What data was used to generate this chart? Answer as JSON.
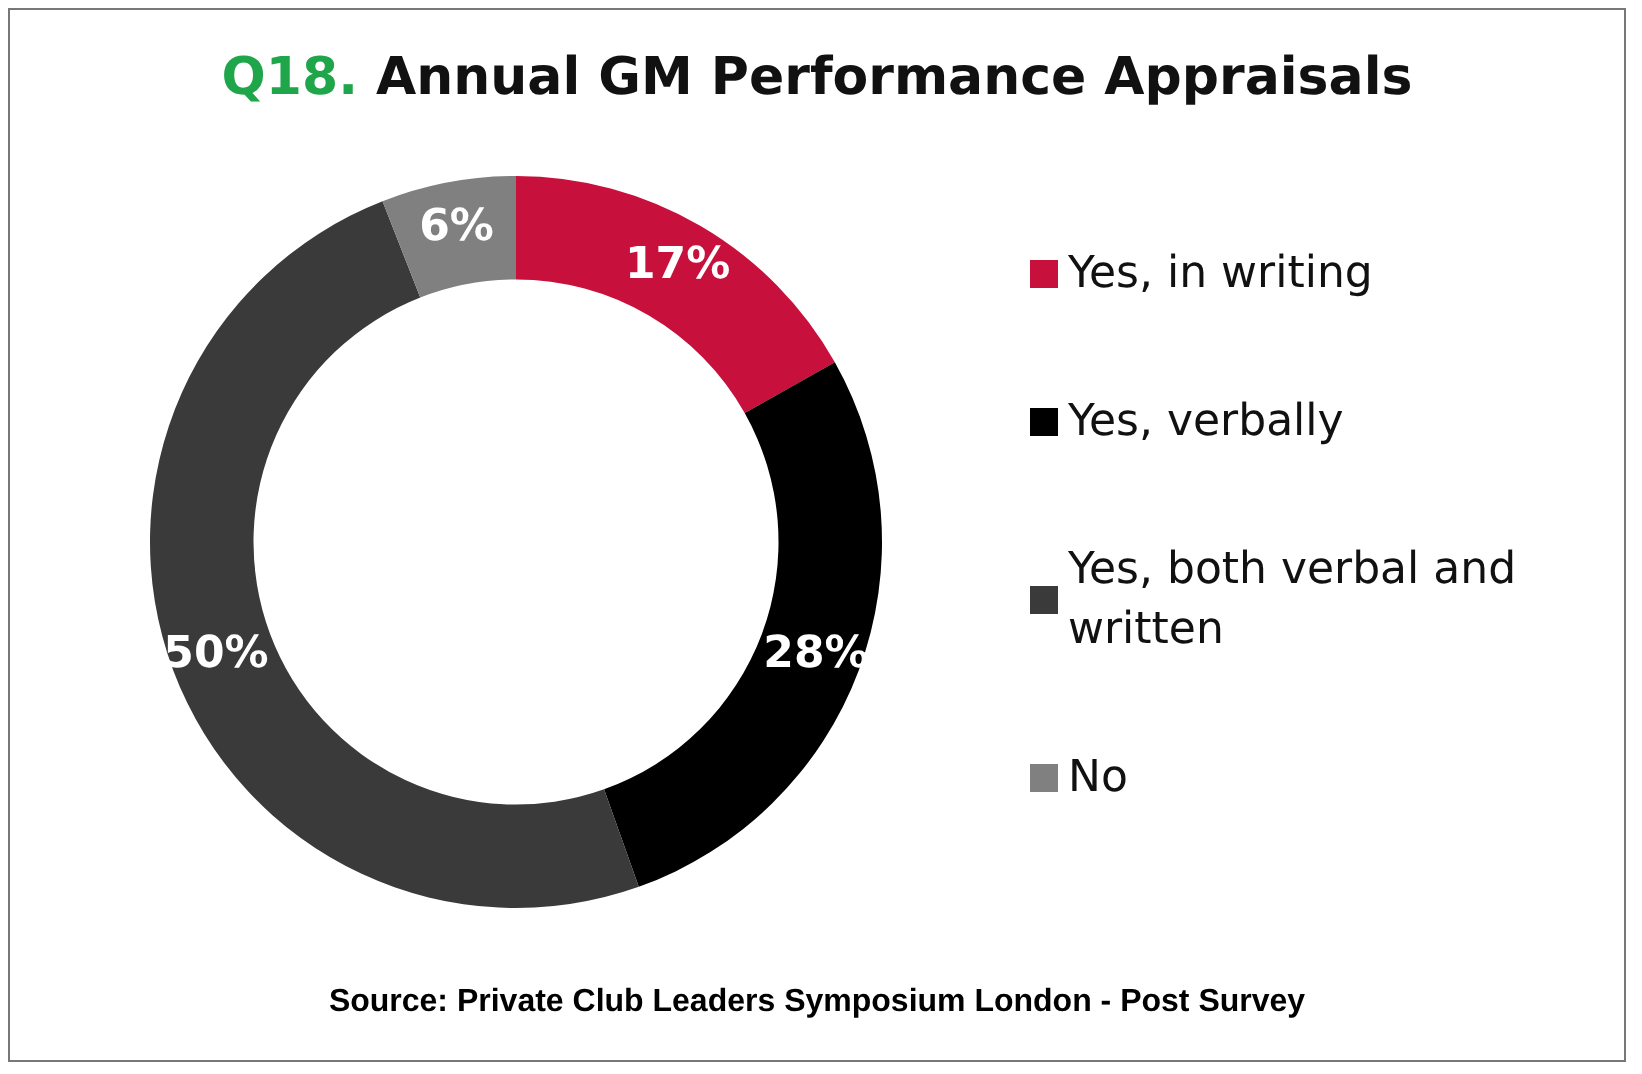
{
  "chart_data": {
    "type": "donut",
    "title": "Q18. Annual GM Performance Appraisals",
    "categories": [
      "Yes, in writing",
      "Yes, verbally",
      "Yes, both verbal and written",
      "No"
    ],
    "values": [
      17,
      28,
      50,
      6
    ],
    "colors": [
      "#c8103c",
      "#000000",
      "#3a3a3a",
      "#808080"
    ],
    "value_labels": [
      "17%",
      "28%",
      "50%",
      "6%"
    ],
    "legend": "right",
    "annotations": [
      "Source: Private Club Leaders Symposium London - Post Survey"
    ]
  }
}
